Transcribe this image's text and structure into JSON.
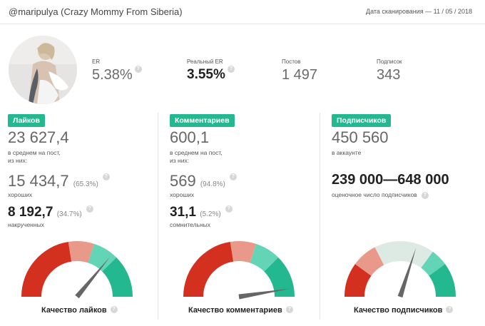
{
  "header": {
    "title": "@maripulya (Crazy Mommy From Siberia)",
    "scan_date": "Дата сканирования — 11 / 05 / 2018"
  },
  "stats": {
    "er": {
      "label": "ER",
      "value": "5.38%"
    },
    "real_er": {
      "label": "Реальный ER",
      "value": "3.55%"
    },
    "posts": {
      "label": "Постов",
      "value": "1 497"
    },
    "following": {
      "label": "Подписок",
      "value": "343"
    }
  },
  "likes": {
    "badge": "Лайков",
    "total": "23 627,4",
    "total_caption_1": "в среднем на пост,",
    "total_caption_2": "из них:",
    "good": "15 434,7",
    "good_pct": "(65.3%)",
    "good_caption": "хороших",
    "bad": "8 192,7",
    "bad_pct": "(34.7%)",
    "bad_caption": "накрученных",
    "quality_label": "Качество лайков",
    "gauge_level": 0.72
  },
  "comments": {
    "badge": "Комментариев",
    "total": "600,1",
    "total_caption_1": "в среднем на пост,",
    "total_caption_2": "из них:",
    "good": "569",
    "good_pct": "(94.8%)",
    "good_caption": "хороших",
    "bad": "31,1",
    "bad_pct": "(5.2%)",
    "bad_caption": "сомнительных",
    "quality_label": "Качество комментариев",
    "gauge_level": 0.95
  },
  "followers": {
    "badge": "Подписчиков",
    "total": "450 560",
    "total_caption": "в аккаунте",
    "estimate": "239 000—648 000",
    "estimate_caption": "оценочное число подписчиков",
    "quality_label": "Качество подписчиков",
    "gauge_level": 0.6
  },
  "help_glyph": "?",
  "colors": {
    "accent": "#23b88f",
    "gauge_red": "#d3301f",
    "gauge_salmon": "#e9998a",
    "gauge_pale": "#dde9e3",
    "gauge_light_green": "#63d4b5",
    "gauge_green": "#23b88f",
    "needle": "#666666"
  }
}
